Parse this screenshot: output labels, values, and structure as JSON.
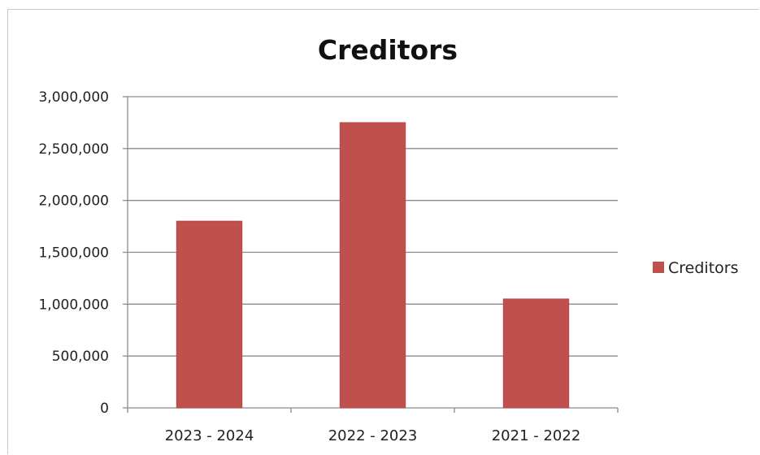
{
  "chart_data": {
    "type": "bar",
    "title": "Creditors",
    "xlabel": "",
    "ylabel": "",
    "categories": [
      "2023 - 2024",
      "2022 - 2023",
      "2021 - 2022"
    ],
    "series": [
      {
        "name": "Creditors",
        "values": [
          1800000,
          2750000,
          1050000
        ],
        "color": "#c0504d"
      }
    ],
    "ylim": [
      0,
      3000000
    ],
    "yticks": [
      0,
      500000,
      1000000,
      1500000,
      2000000,
      2500000,
      3000000
    ],
    "ytick_labels": [
      "0",
      "500,000",
      "1,000,000",
      "1,500,000",
      "2,000,000",
      "2,500,000",
      "3,000,000"
    ],
    "grid": true,
    "legend_position": "right"
  }
}
